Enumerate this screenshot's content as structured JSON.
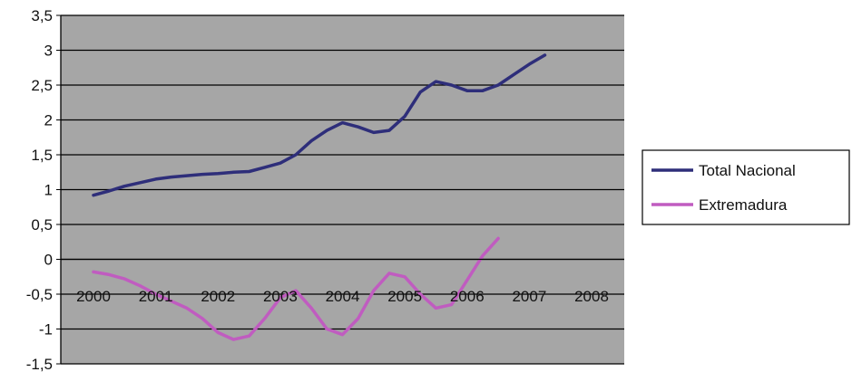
{
  "chart_data": {
    "type": "line",
    "title": "",
    "xlabel": "",
    "ylabel": "",
    "ylim": [
      -1.5,
      3.5
    ],
    "ytick_step": 0.5,
    "categories": [
      "2000",
      "2001",
      "2002",
      "2003",
      "2004",
      "2005",
      "2006",
      "2007",
      "2008"
    ],
    "x": [
      2000,
      2000.25,
      2000.5,
      2000.75,
      2001,
      2001.25,
      2001.5,
      2001.75,
      2002,
      2002.25,
      2002.5,
      2002.75,
      2003,
      2003.25,
      2003.5,
      2003.75,
      2004,
      2004.25,
      2004.5,
      2004.75,
      2005,
      2005.25,
      2005.5,
      2005.75,
      2006,
      2006.25,
      2006.5,
      2006.75,
      2007,
      2007.25,
      2007.5,
      2007.75,
      2008
    ],
    "series": [
      {
        "name": "Total Nacional",
        "color": "#2e2e7a",
        "values": [
          0.92,
          0.98,
          1.05,
          1.1,
          1.15,
          1.18,
          1.2,
          1.22,
          1.23,
          1.25,
          1.26,
          1.32,
          1.38,
          1.5,
          1.7,
          1.85,
          1.96,
          1.9,
          1.82,
          1.85,
          2.05,
          2.4,
          2.55,
          2.5,
          2.42,
          2.42,
          2.5,
          2.65,
          2.8,
          2.93,
          null,
          null,
          null
        ]
      },
      {
        "name": "Extremadura",
        "color": "#c05cc0",
        "values": [
          -0.18,
          -0.22,
          -0.28,
          -0.38,
          -0.5,
          -0.6,
          -0.7,
          -0.85,
          -1.05,
          -1.15,
          -1.1,
          -0.85,
          -0.55,
          -0.45,
          -0.7,
          -1.0,
          -1.08,
          -0.85,
          -0.45,
          -0.2,
          -0.25,
          -0.5,
          -0.7,
          -0.65,
          -0.3,
          0.05,
          0.3,
          null,
          null,
          null,
          null,
          null,
          null
        ]
      }
    ],
    "grid": true,
    "legend_position": "right",
    "plot_background": "#a6a6a6"
  }
}
